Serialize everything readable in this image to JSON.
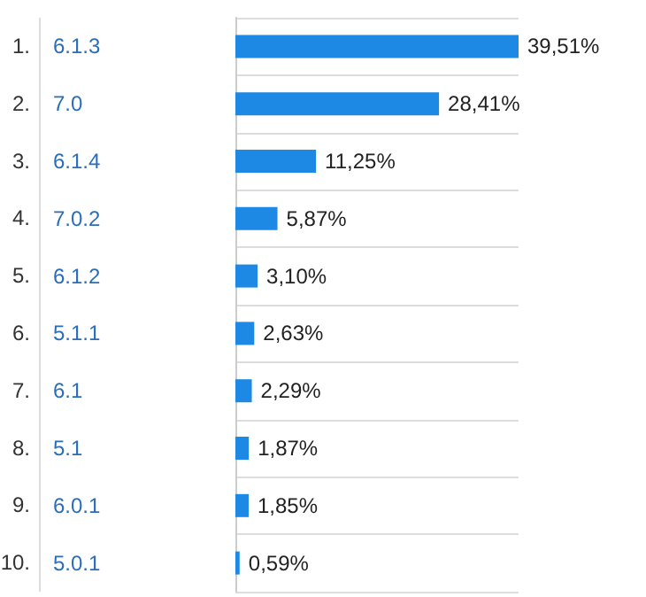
{
  "chart_data": {
    "type": "bar",
    "orientation": "horizontal",
    "categories": [
      "6.1.3",
      "7.0",
      "6.1.4",
      "7.0.2",
      "6.1.2",
      "5.1.1",
      "6.1",
      "5.1",
      "6.0.1",
      "5.0.1"
    ],
    "values": [
      39.51,
      28.41,
      11.25,
      5.87,
      3.1,
      2.63,
      2.29,
      1.87,
      1.85,
      0.59
    ],
    "value_labels": [
      "39,51%",
      "28,41%",
      "11,25%",
      "5,87%",
      "3,10%",
      "2,63%",
      "2,29%",
      "1,87%",
      "1,85%",
      "0,59%"
    ],
    "color": "#1e88e5",
    "grid": "y",
    "annotations": [
      "1.",
      "2.",
      "3.",
      "4.",
      "5.",
      "6.",
      "7.",
      "8.",
      "9.",
      "10."
    ]
  }
}
